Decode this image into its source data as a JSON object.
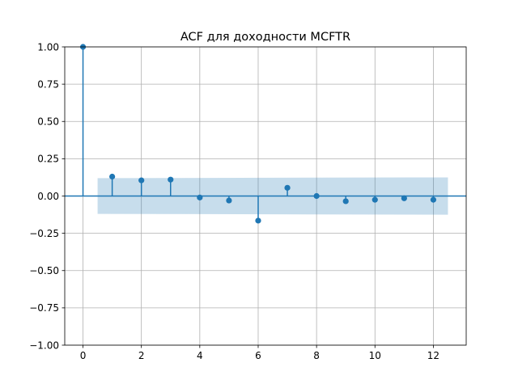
{
  "chart_data": {
    "type": "stem",
    "title": "ACF для доходности MCFTR",
    "xlabel": "",
    "ylabel": "",
    "xlim": [
      -0.625,
      13.125
    ],
    "ylim": [
      -1.0,
      1.0
    ],
    "x_ticks": [
      0,
      2,
      4,
      6,
      8,
      10,
      12
    ],
    "x_tick_labels": [
      "0",
      "2",
      "4",
      "6",
      "8",
      "10",
      "12"
    ],
    "y_ticks": [
      -1.0,
      -0.75,
      -0.5,
      -0.25,
      0.0,
      0.25,
      0.5,
      0.75,
      1.0
    ],
    "y_tick_labels": [
      "−1.00",
      "−0.75",
      "−0.50",
      "−0.25",
      "0.00",
      "0.25",
      "0.50",
      "0.75",
      "1.00"
    ],
    "grid": true,
    "lags": [
      0,
      1,
      2,
      3,
      4,
      5,
      6,
      7,
      8,
      9,
      10,
      11,
      12
    ],
    "acf": [
      1.0,
      0.13,
      0.105,
      0.11,
      -0.01,
      -0.03,
      -0.165,
      0.055,
      0.0,
      -0.035,
      -0.025,
      -0.015,
      -0.025
    ],
    "confidence_band": {
      "x": [
        0.5,
        12.5
      ],
      "upper": [
        0.12,
        0.125
      ],
      "lower": [
        -0.12,
        -0.125
      ]
    },
    "colors": {
      "stem": "#1f77b4",
      "band": "#1f77b4",
      "grid": "#b0b0b0"
    }
  }
}
